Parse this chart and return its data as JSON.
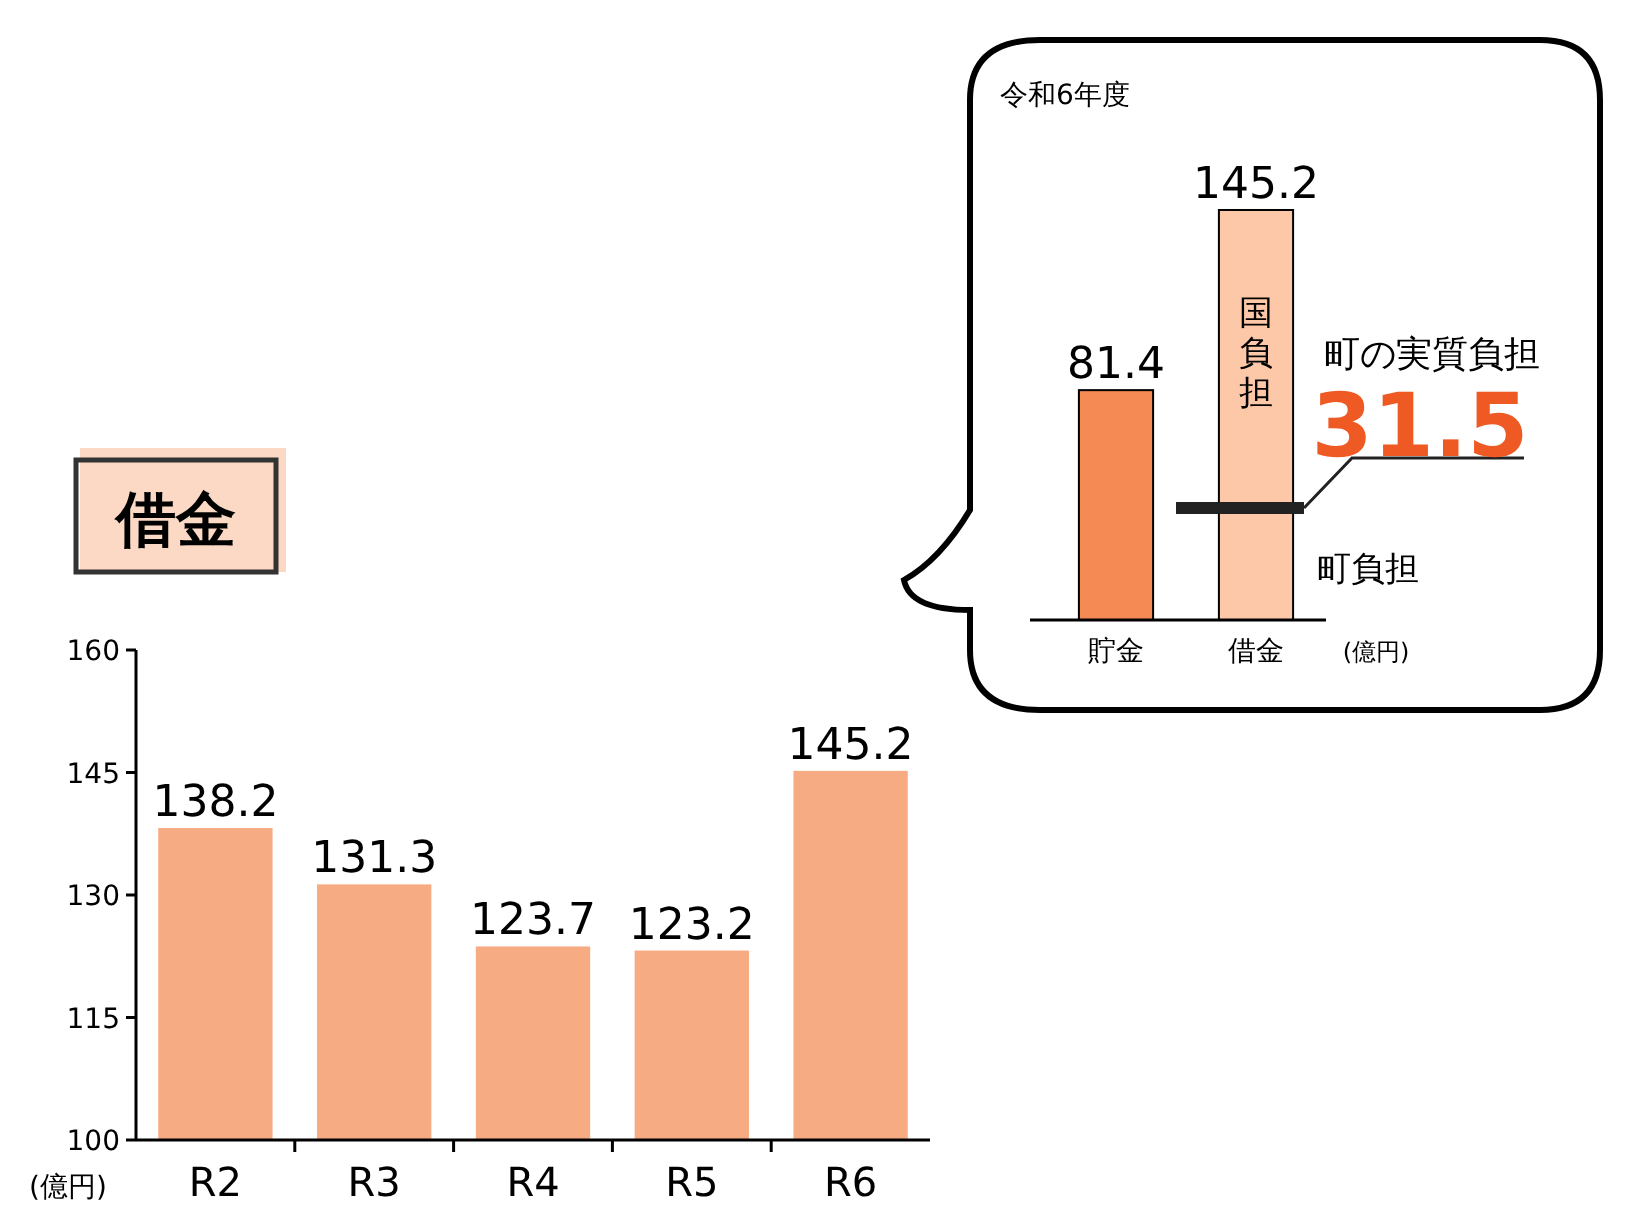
{
  "chart_data": [
    {
      "type": "bar",
      "title": "借金",
      "ylabel": "(億円)",
      "categories": [
        "R2",
        "R3",
        "R4",
        "R5",
        "R6"
      ],
      "values": [
        138.2,
        131.3,
        123.7,
        123.2,
        145.2
      ],
      "color": "#f7ab82",
      "ylim": [
        100,
        160
      ],
      "yticks": [
        100,
        115,
        130,
        145,
        160
      ],
      "data_labels": true
    },
    {
      "type": "bar",
      "title": "令和6年度",
      "ylabel": "(億円)",
      "categories": [
        "貯金",
        "借金"
      ],
      "values": [
        81.4,
        145.2
      ],
      "colors": [
        "#f58a55",
        "#fcc8a8"
      ],
      "ylim": [
        0,
        145.2
      ],
      "data_labels": true,
      "annotations": [
        "国負担",
        "町負担",
        "町の実質負担",
        "31.5"
      ]
    }
  ]
}
